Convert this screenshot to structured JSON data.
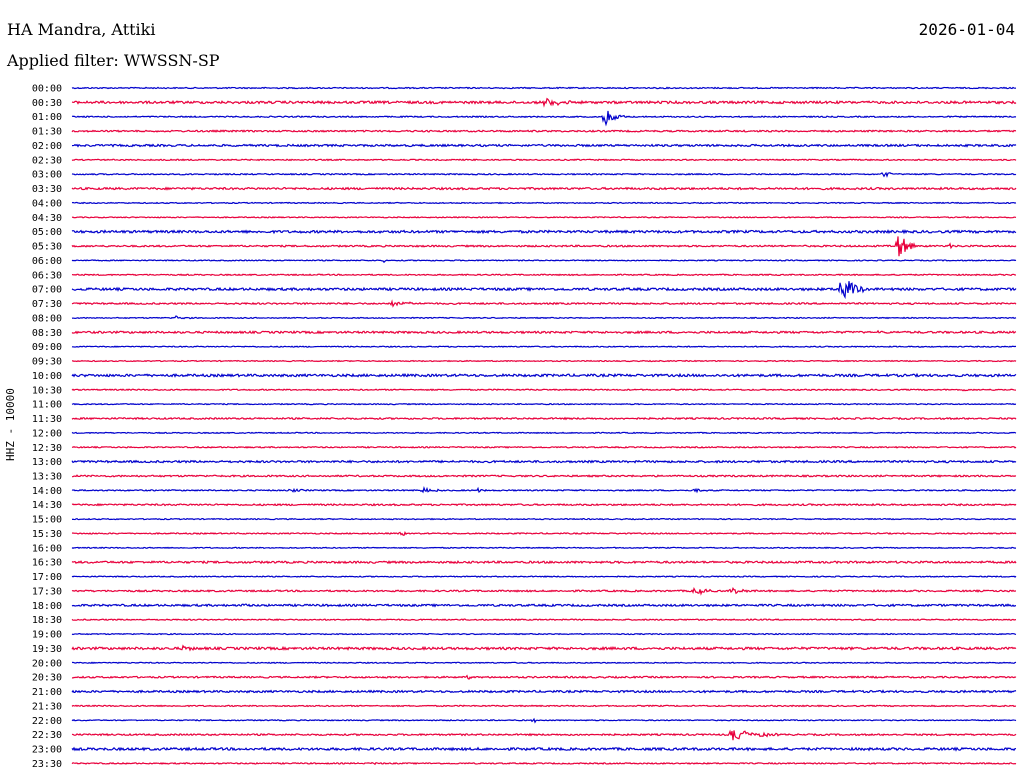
{
  "header": {
    "title": "HA Mandra, Attiki",
    "filter": "Applied filter: WWSSN-SP",
    "date": "2026-01-04"
  },
  "chart_data": {
    "type": "line",
    "title": "HA Mandra, Attiki",
    "subtitle": "Applied filter: WWSSN-SP",
    "ylabel": "HHZ - 10000",
    "colors": [
      "#0000cc",
      "#e8003c"
    ],
    "rows": [
      "00:00",
      "00:30",
      "01:00",
      "01:30",
      "02:00",
      "02:30",
      "03:00",
      "03:30",
      "04:00",
      "04:30",
      "05:00",
      "05:30",
      "06:00",
      "06:30",
      "07:00",
      "07:30",
      "08:00",
      "08:30",
      "09:00",
      "09:30",
      "10:00",
      "10:30",
      "11:00",
      "11:30",
      "12:00",
      "12:30",
      "13:00",
      "13:30",
      "14:00",
      "14:30",
      "15:00",
      "15:30",
      "16:00",
      "16:30",
      "17:00",
      "17:30",
      "18:00",
      "18:30",
      "19:00",
      "19:30",
      "20:00",
      "20:30",
      "21:00",
      "21:30",
      "22:00",
      "22:30",
      "23:00",
      "23:30"
    ],
    "noise": [
      0.6,
      1.2,
      0.6,
      0.8,
      1.0,
      0.6,
      0.6,
      1.0,
      0.5,
      0.5,
      1.2,
      0.8,
      0.5,
      0.6,
      1.2,
      0.8,
      0.5,
      1.0,
      0.5,
      0.5,
      1.2,
      0.6,
      0.5,
      0.8,
      0.5,
      0.6,
      1.0,
      0.8,
      0.6,
      0.8,
      0.5,
      0.6,
      0.5,
      1.0,
      0.5,
      0.8,
      1.0,
      0.6,
      0.5,
      1.2,
      0.5,
      0.8,
      1.0,
      0.6,
      0.5,
      0.8,
      1.2,
      0.6
    ],
    "events": [
      {
        "row": 1,
        "x": 0.5,
        "amp": 4,
        "len": 0.035
      },
      {
        "row": 2,
        "x": 0.565,
        "amp": 9,
        "len": 0.02
      },
      {
        "row": 6,
        "x": 0.86,
        "amp": 5,
        "len": 0.01
      },
      {
        "row": 11,
        "x": 0.875,
        "amp": 14,
        "len": 0.02
      },
      {
        "row": 11,
        "x": 0.93,
        "amp": 2,
        "len": 0.005
      },
      {
        "row": 12,
        "x": 0.33,
        "amp": 2,
        "len": 0.005
      },
      {
        "row": 14,
        "x": 0.815,
        "amp": 16,
        "len": 0.025
      },
      {
        "row": 15,
        "x": 0.34,
        "amp": 3,
        "len": 0.03
      },
      {
        "row": 16,
        "x": 0.11,
        "amp": 2,
        "len": 0.015
      },
      {
        "row": 17,
        "x": 0.85,
        "amp": 2,
        "len": 0.01
      },
      {
        "row": 21,
        "x": 0.945,
        "amp": 2,
        "len": 0.005
      },
      {
        "row": 28,
        "x": 0.23,
        "amp": 2,
        "len": 0.02
      },
      {
        "row": 28,
        "x": 0.37,
        "amp": 3,
        "len": 0.025
      },
      {
        "row": 28,
        "x": 0.43,
        "amp": 2,
        "len": 0.01
      },
      {
        "row": 28,
        "x": 0.66,
        "amp": 2,
        "len": 0.02
      },
      {
        "row": 31,
        "x": 0.35,
        "amp": 3,
        "len": 0.008
      },
      {
        "row": 35,
        "x": 0.66,
        "amp": 5,
        "len": 0.02
      },
      {
        "row": 35,
        "x": 0.7,
        "amp": 3,
        "len": 0.02
      },
      {
        "row": 36,
        "x": 0.18,
        "amp": 2,
        "len": 0.008
      },
      {
        "row": 39,
        "x": 0.12,
        "amp": 4,
        "len": 0.012
      },
      {
        "row": 41,
        "x": 0.42,
        "amp": 2,
        "len": 0.008
      },
      {
        "row": 44,
        "x": 0.49,
        "amp": 2,
        "len": 0.005
      },
      {
        "row": 45,
        "x": 0.7,
        "amp": 6,
        "len": 0.05
      },
      {
        "row": 47,
        "x": 0.32,
        "amp": 2,
        "len": 0.005
      }
    ]
  }
}
